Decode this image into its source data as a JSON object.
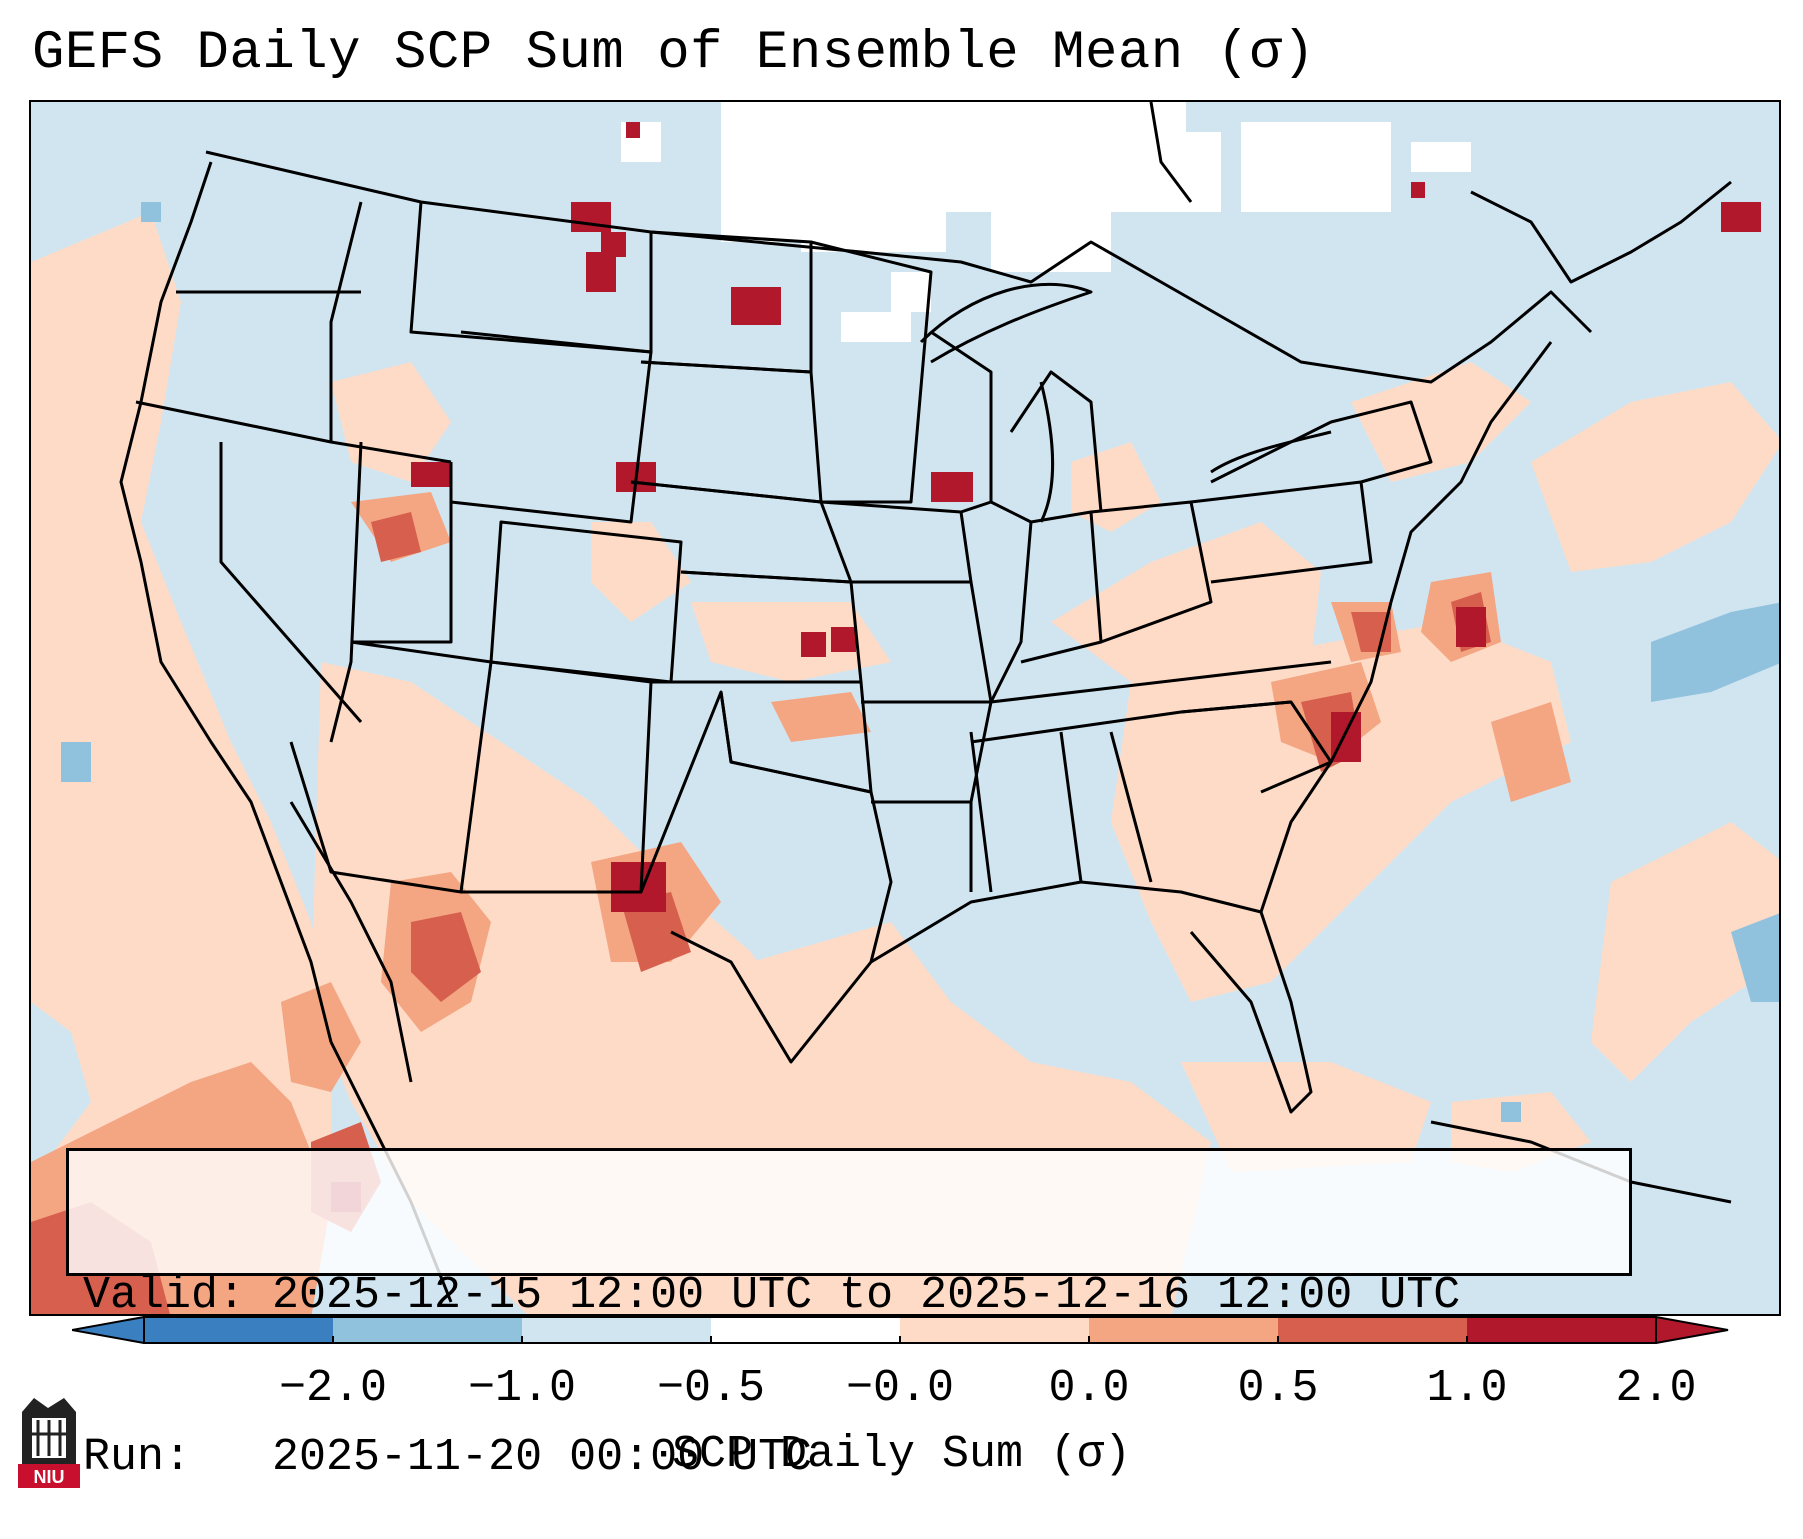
{
  "title": "GEFS Daily SCP Sum of Ensemble Mean (σ)",
  "info": {
    "valid_line": "Valid: 2025-12-15 12:00 UTC to 2025-12-16 12:00 UTC",
    "run_line": "Run:   2025-11-20 00:00 UTC"
  },
  "colorbar": {
    "label": "SCP Daily Sum (σ)",
    "ticks": [
      "−2.0",
      "−1.0",
      "−0.5",
      "−0.0",
      "0.0",
      "0.5",
      "1.0",
      "2.0"
    ],
    "colors": [
      "#3a7fc0",
      "#90c2de",
      "#d1e5f0",
      "#ffffff",
      "#fddbc7",
      "#f4a582",
      "#d6604d",
      "#b2182b"
    ],
    "extend": "both"
  },
  "logo": {
    "text": "NIU"
  },
  "palette": {
    "ocean": "#d1e5f0",
    "neutral": "#ffffff",
    "light_red": "#fddbc7",
    "mid_red": "#f4a582",
    "red": "#d6604d",
    "dark_red": "#b2182b",
    "light_blue": "#90c2de"
  }
}
